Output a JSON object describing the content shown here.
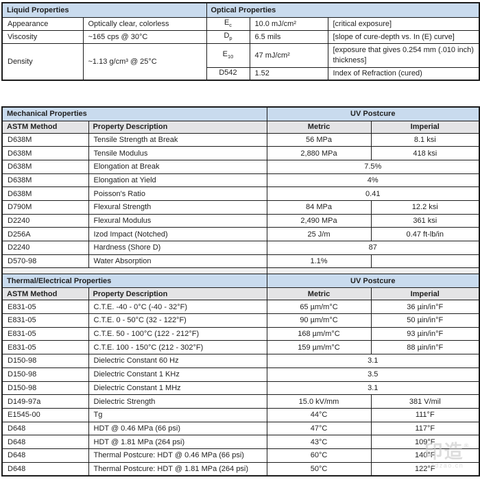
{
  "colors": {
    "header_bg": "#c9dbee",
    "subheader_bg": "#e4e4e6",
    "spacer_bg": "#f0f0f0",
    "border": "#1b1b1b",
    "text": "#212121",
    "watermark": "#c8c8c8"
  },
  "liquid_table": {
    "title": "Liquid Properties",
    "rows": [
      {
        "property": "Appearance",
        "value": "Optically clear, colorless"
      },
      {
        "property": "Viscosity",
        "value": "~165 cps @ 30°C"
      },
      {
        "property": "Density",
        "value": "~1.13 g/cm³ @ 25°C"
      }
    ]
  },
  "optical_table": {
    "title": "Optical Properties",
    "rows": [
      {
        "symbol": "E",
        "sub": "c",
        "value": "10.0 mJ/cm²",
        "description": "[critical exposure]"
      },
      {
        "symbol": "D",
        "sub": "p",
        "value": "6.5 mils",
        "description": "[slope of cure-depth vs. In (E) curve]"
      },
      {
        "symbol": "E",
        "sub": "10",
        "value": "47 mJ/cm²",
        "description": "[exposure that gives 0.254 mm (.010 inch) thickness]"
      },
      {
        "symbol": "D542",
        "sub": "",
        "value": "1.52",
        "description": "Index of Refraction (cured)"
      }
    ]
  },
  "mechanical_table": {
    "title": "Mechanical Properties",
    "postcure_header": "UV Postcure",
    "columns": [
      "ASTM Method",
      "Property Description",
      "Metric",
      "Imperial"
    ],
    "rows": [
      {
        "method": "D638M",
        "description": "Tensile Strength at Break",
        "metric": "56 MPa",
        "imperial": "8.1 ksi",
        "span": false
      },
      {
        "method": "D638M",
        "description": "Tensile Modulus",
        "metric": "2,880 MPa",
        "imperial": "418 ksi",
        "span": false
      },
      {
        "method": "D638M",
        "description": "Elongation at Break",
        "metric": "7.5%",
        "imperial": "",
        "span": true
      },
      {
        "method": "D638M",
        "description": "Elongation at Yield",
        "metric": "4%",
        "imperial": "",
        "span": true
      },
      {
        "method": "D638M",
        "description": "Poisson's Ratio",
        "metric": "0.41",
        "imperial": "",
        "span": true
      },
      {
        "method": "D790M",
        "description": "Flexural Strength",
        "metric": "84 MPa",
        "imperial": "12.2 ksi",
        "span": false
      },
      {
        "method": "D2240",
        "description": "Flexural Modulus",
        "metric": "2,490 MPa",
        "imperial": "361 ksi",
        "span": false
      },
      {
        "method": "D256A",
        "description": "Izod Impact (Notched)",
        "metric": "25 J/m",
        "imperial": "0.47 ft-lb/in",
        "span": false
      },
      {
        "method": "D2240",
        "description": "Hardness (Shore D)",
        "metric": "87",
        "imperial": "",
        "span": true
      },
      {
        "method": "D570-98",
        "description": "Water Absorption",
        "metric": "1.1%",
        "imperial": "",
        "span": false
      }
    ]
  },
  "thermal_table": {
    "title": "Thermal/Electrical Properties",
    "postcure_header": "UV Postcure",
    "columns": [
      "ASTM Method",
      "Property Description",
      "Metric",
      "Imperial"
    ],
    "rows": [
      {
        "method": "E831-05",
        "description": "C.T.E. -40 - 0°C (-40 - 32°F)",
        "metric": "65 µm/m°C",
        "imperial": "36 µin/in°F",
        "span": false
      },
      {
        "method": "E831-05",
        "description": "C.T.E. 0 - 50°C (32 - 122°F)",
        "metric": "90 µm/m°C",
        "imperial": "50 µin/in°F",
        "span": false
      },
      {
        "method": "E831-05",
        "description": "C.T.E. 50 - 100°C (122 - 212°F)",
        "metric": "168 µm/m°C",
        "imperial": "93 µin/in°F",
        "span": false
      },
      {
        "method": "E831-05",
        "description": "C.T.E. 100 - 150°C (212 - 302°F)",
        "metric": "159 µm/m°C",
        "imperial": "88 µin/in°F",
        "span": false
      },
      {
        "method": "D150-98",
        "description": "Dielectric Constant 60 Hz",
        "metric": "3.1",
        "imperial": "",
        "span": true
      },
      {
        "method": "D150-98",
        "description": "Dielectric Constant 1 KHz",
        "metric": "3.5",
        "imperial": "",
        "span": true
      },
      {
        "method": "D150-98",
        "description": "Dielectric Constant 1 MHz",
        "metric": "3.1",
        "imperial": "",
        "span": true
      },
      {
        "method": "D149-97a",
        "description": "Dielectric Strength",
        "metric": "15.0 kV/mm",
        "imperial": "381 V/mil",
        "span": false
      },
      {
        "method": "E1545-00",
        "description": "Tg",
        "metric": "44°C",
        "imperial": "111°F",
        "span": false
      },
      {
        "method": "D648",
        "description": "HDT @ 0.46 MPa (66 psi)",
        "metric": "47°C",
        "imperial": "117°F",
        "span": false
      },
      {
        "method": "D648",
        "description": "HDT @ 1.81 MPa (264 psi)",
        "metric": "43°C",
        "imperial": "109°F",
        "span": false
      },
      {
        "method": "D648",
        "description": "Thermal Postcure: HDT @ 0.46 MPa (66 psi)",
        "metric": "60°C",
        "imperial": "140°F",
        "span": false
      },
      {
        "method": "D648",
        "description": "Thermal Postcure: HDT @ 1.81 MPa (264 psi)",
        "metric": "50°C",
        "imperial": "122°F",
        "span": false
      }
    ]
  },
  "watermark": {
    "logo": "印造",
    "mark": "®",
    "domain": "3dzao.cn"
  }
}
